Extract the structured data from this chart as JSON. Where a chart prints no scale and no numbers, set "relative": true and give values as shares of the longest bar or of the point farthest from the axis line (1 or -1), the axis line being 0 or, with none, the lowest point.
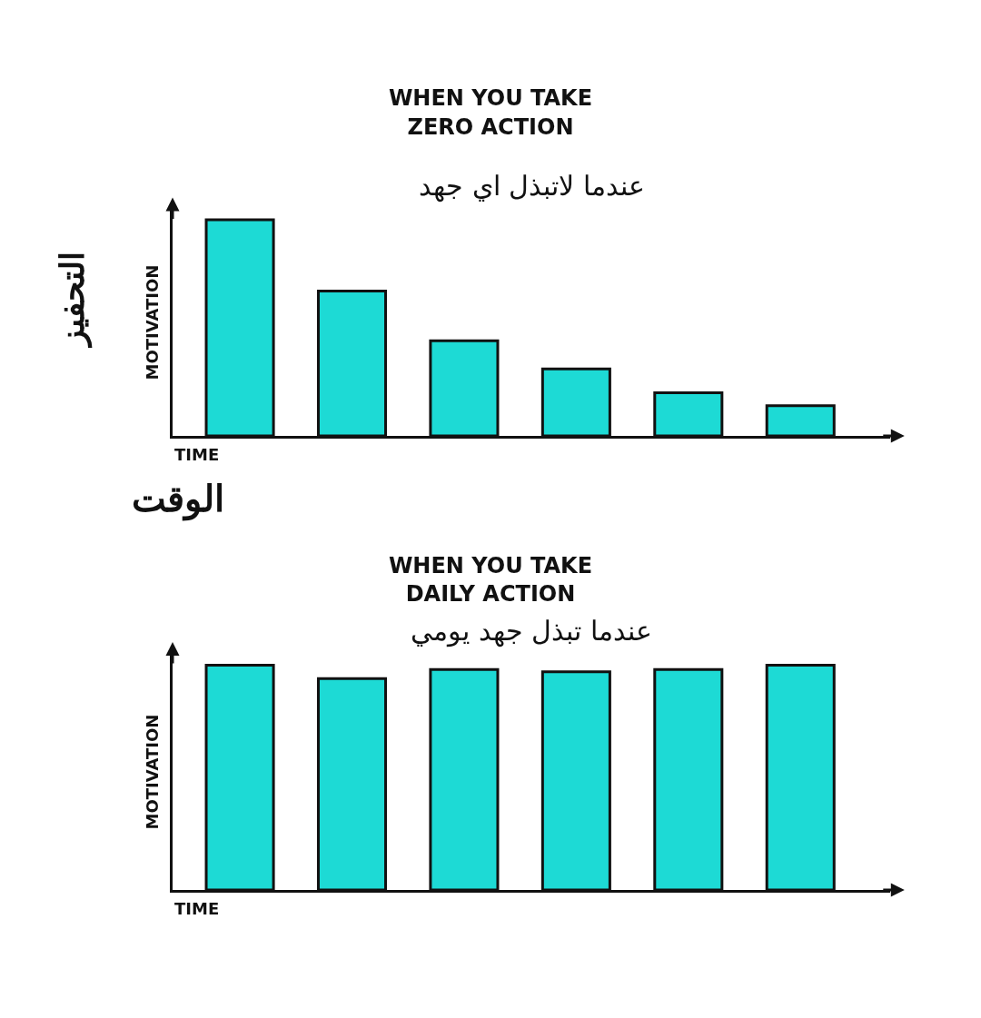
{
  "chart_data": [
    {
      "type": "bar",
      "title": "WHEN YOU TAKE\nZERO ACTION",
      "subtitle": "عندما لاتبذل اي جهد",
      "xlabel": "TIME",
      "ylabel": "MOTIVATION",
      "relative": true,
      "categories": [
        null,
        null,
        null,
        null,
        null,
        null
      ],
      "color": "#1ddad5",
      "values": [
        1,
        0.67,
        0.44,
        0.31,
        0.2,
        0.14
      ],
      "annotations": [
        "التحفيز",
        "الوقت"
      ]
    },
    {
      "type": "bar",
      "title": "WHEN YOU TAKE\nDAILY ACTION",
      "subtitle": "عندما تبذل جهد يومي",
      "xlabel": "TIME",
      "ylabel": "MOTIVATION",
      "relative": true,
      "categories": [
        null,
        null,
        null,
        null,
        null,
        null
      ],
      "color": "#1ddad5",
      "values": [
        1,
        0.94,
        0.98,
        0.97,
        0.98,
        1
      ]
    }
  ]
}
